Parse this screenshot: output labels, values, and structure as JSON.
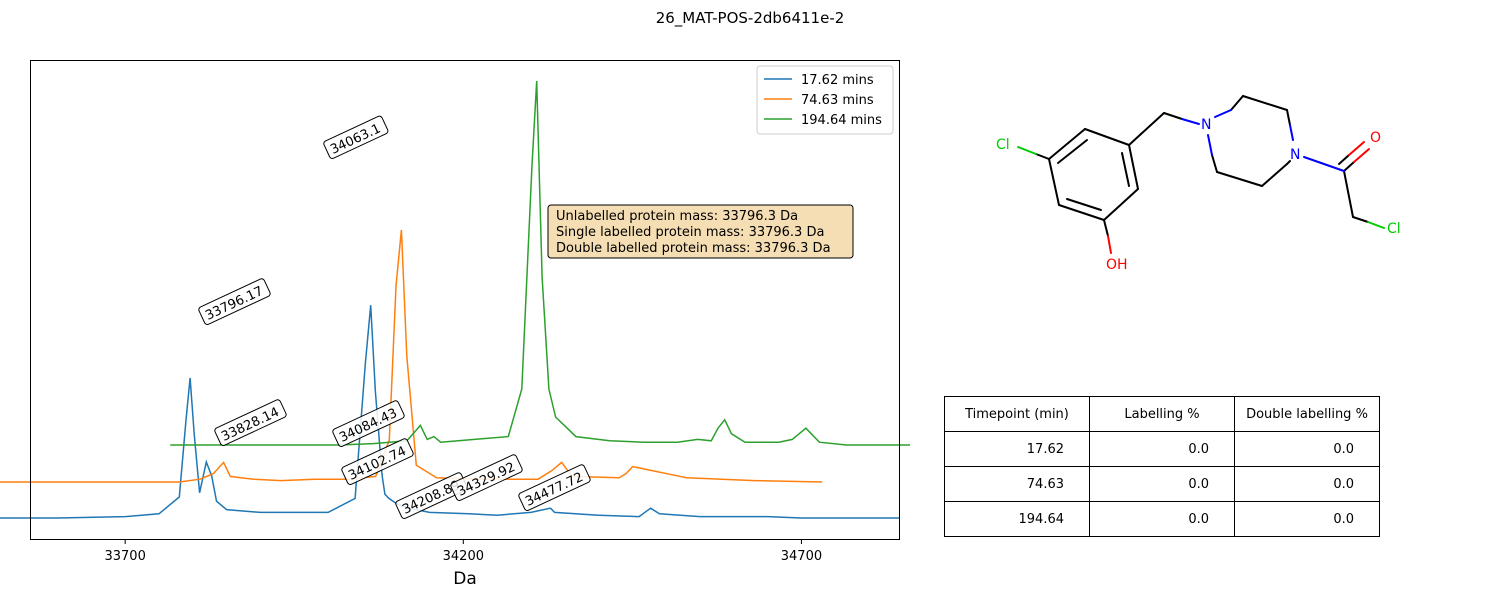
{
  "figure": {
    "title": "26_MAT-POS-2db6411e-2"
  },
  "chart_data": {
    "type": "line",
    "title": "",
    "xlabel": "Da",
    "ylabel": "",
    "xlim": [
      33560,
      34845
    ],
    "xticks": [
      33700,
      34200,
      34700
    ],
    "legend_position": "top-right",
    "grid": false,
    "series": [
      {
        "name": "17.62 mins",
        "color": "#1f77b4",
        "x": [
          33500,
          33600,
          33700,
          33750,
          33780,
          33790,
          33796,
          33802,
          33810,
          33820,
          33828,
          33835,
          33850,
          33900,
          33950,
          34000,
          34040,
          34055,
          34063,
          34070,
          34080,
          34084,
          34090,
          34102,
          34120,
          34150,
          34208,
          34250,
          34300,
          34329,
          34335,
          34400,
          34460,
          34477,
          34490,
          34550,
          34600,
          34650,
          34700,
          34750,
          34800,
          34845
        ],
        "y": [
          0,
          0,
          1,
          3,
          15,
          70,
          100,
          60,
          18,
          40,
          30,
          12,
          6,
          4,
          4,
          4,
          14,
          110,
          152,
          90,
          30,
          17,
          14,
          10,
          7,
          4,
          3,
          2,
          4,
          7,
          4,
          2,
          1,
          7,
          3,
          1,
          1,
          1,
          0,
          0,
          0,
          0
        ]
      },
      {
        "name": "74.63 mins",
        "color": "#ff7f0e",
        "x": [
          33550,
          33650,
          33750,
          33850,
          33880,
          33900,
          33915,
          33925,
          33940,
          33960,
          34000,
          34050,
          34100,
          34140,
          34160,
          34170,
          34178,
          34186,
          34200,
          34230,
          34300,
          34380,
          34400,
          34415,
          34430,
          34500,
          34510,
          34520,
          34600,
          34700,
          34800
        ],
        "y": [
          0,
          0,
          0,
          0,
          2,
          6,
          14,
          4,
          3,
          2,
          1,
          2,
          2,
          4,
          30,
          140,
          180,
          90,
          12,
          3,
          2,
          2,
          8,
          14,
          4,
          3,
          6,
          11,
          3,
          1,
          0
        ]
      },
      {
        "name": "194.64 mins",
        "color": "#2ca02c",
        "x": [
          33700,
          33850,
          33950,
          34000,
          34050,
          34070,
          34080,
          34090,
          34100,
          34150,
          34200,
          34220,
          34235,
          34242,
          34250,
          34260,
          34270,
          34300,
          34350,
          34400,
          34450,
          34480,
          34500,
          34510,
          34520,
          34530,
          34550,
          34600,
          34620,
          34640,
          34660,
          34700,
          34845
        ],
        "y": [
          0,
          0,
          0,
          1,
          3,
          14,
          4,
          6,
          2,
          4,
          6,
          40,
          200,
          260,
          120,
          40,
          20,
          6,
          3,
          2,
          2,
          4,
          3,
          12,
          18,
          8,
          2,
          2,
          4,
          12,
          2,
          0,
          0
        ]
      }
    ],
    "annotations": [
      "33796.17",
      "33828.14",
      "34063.1",
      "34084.43",
      "34102.74",
      "34208.89",
      "34329.92",
      "34477.72"
    ],
    "info_box": [
      "Unlabelled protein mass: 33796.3 Da",
      "Single labelled protein mass: 33796.3 Da",
      "Double labelled protein mass: 33796.3 Da"
    ]
  },
  "molecule": {
    "atoms": [
      "Cl",
      "N",
      "N",
      "O",
      "Cl",
      "OH"
    ],
    "colors": {
      "bond": "#000000",
      "N": "#0000ff",
      "O": "#ff0000",
      "Cl": "#00cc00"
    }
  },
  "table": {
    "headers": [
      "Timepoint (min)",
      "Labelling %",
      "Double labelling %"
    ],
    "rows": [
      [
        "17.62",
        "0.0",
        "0.0"
      ],
      [
        "74.63",
        "0.0",
        "0.0"
      ],
      [
        "194.64",
        "0.0",
        "0.0"
      ]
    ]
  }
}
